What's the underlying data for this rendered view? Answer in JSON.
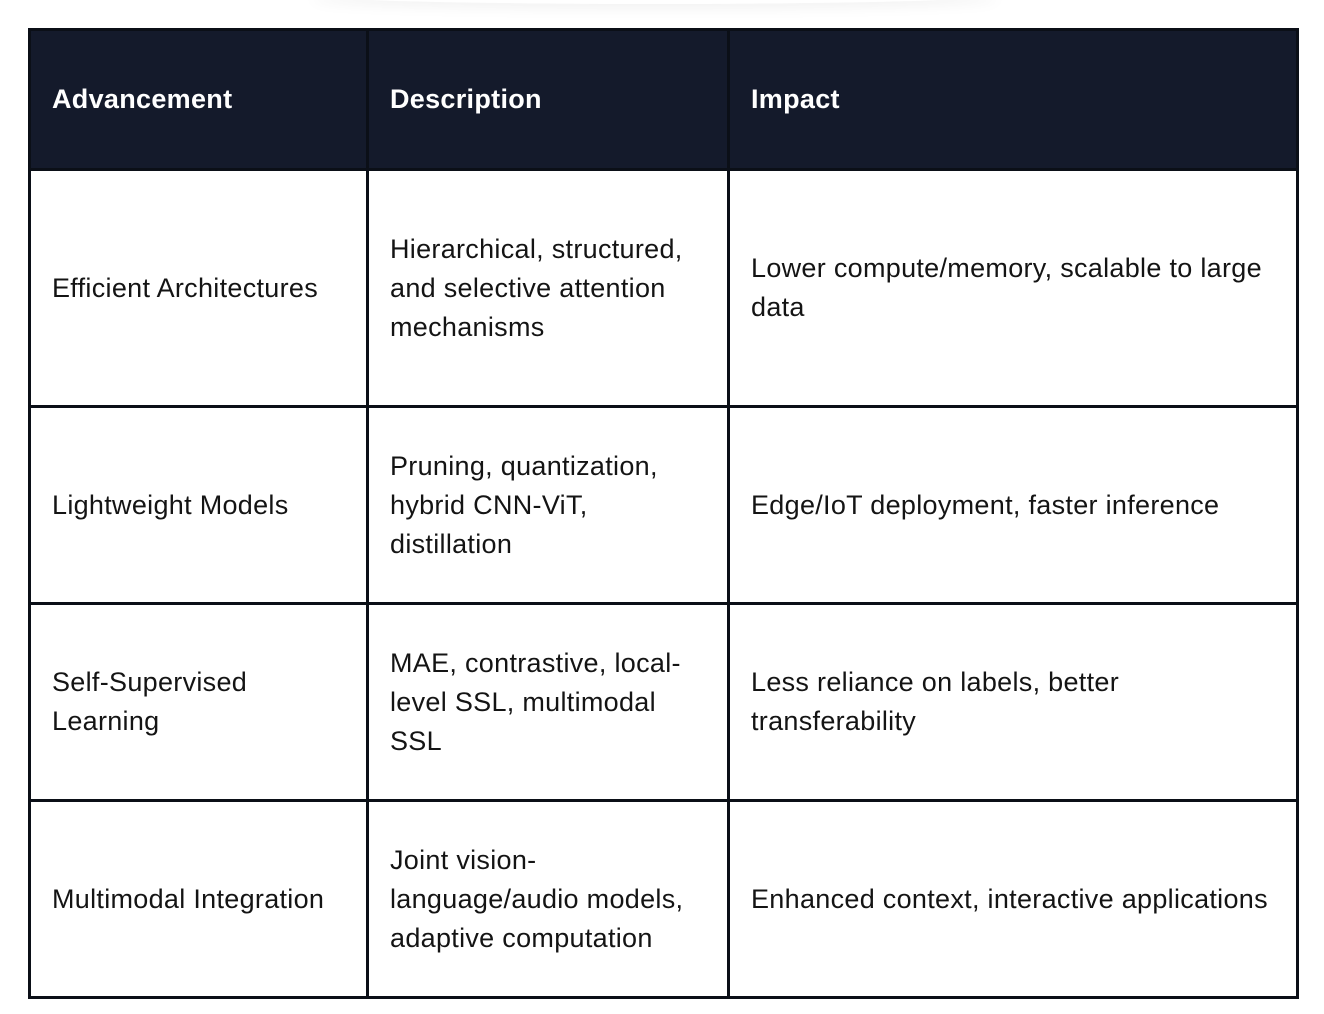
{
  "table": {
    "headers": [
      "Advancement",
      "Description",
      "Impact"
    ],
    "rows": [
      {
        "advancement": "Efficient Architectures",
        "description": "Hierarchical, structured, and selective attention mechanisms",
        "impact": "Lower compute/memory, scalable to large data"
      },
      {
        "advancement": "Lightweight Models",
        "description": "Pruning, quantization, hybrid CNN-ViT, distillation",
        "impact": "Edge/IoT deployment, faster inference"
      },
      {
        "advancement": "Self-Supervised Learning",
        "description": "MAE, contrastive, local-level SSL, multimodal SSL",
        "impact": "Less reliance on labels, better transferability"
      },
      {
        "advancement": "Multimodal Integration",
        "description": "Joint vision-language/audio models, adaptive computation",
        "impact": "Enhanced context, interactive applications"
      }
    ]
  },
  "colors": {
    "header_background": "#141a2b",
    "header_text": "#ffffff",
    "border": "#0b0f17",
    "body_text": "#141414"
  }
}
